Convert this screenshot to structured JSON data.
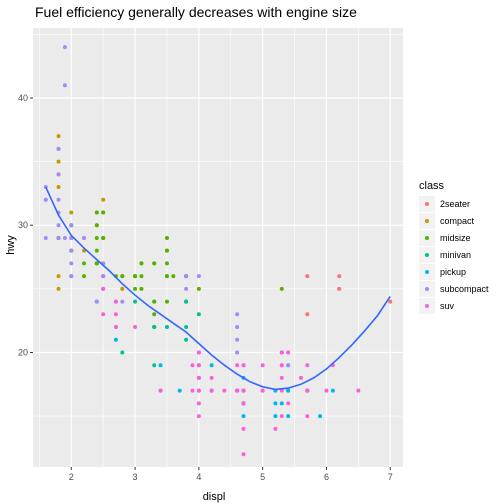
{
  "chart_data": {
    "type": "scatter",
    "title": "Fuel efficiency generally decreases with engine size",
    "xlabel": "displ",
    "ylabel": "hwy",
    "xlim": [
      1.4,
      7.2
    ],
    "ylim": [
      11,
      45.5
    ],
    "x_ticks": [
      2,
      3,
      4,
      5,
      6,
      7
    ],
    "x_tick_labels": [
      "2",
      "3",
      "4",
      "5",
      "6",
      "7"
    ],
    "y_ticks": [
      20,
      30,
      40
    ],
    "y_tick_labels": [
      "20",
      "30",
      "40"
    ],
    "grid": true,
    "panel_background": "#ebebeb",
    "grid_color": "#ffffff",
    "legend": {
      "title": "class",
      "placement": "right",
      "entries": [
        {
          "label": "2seater",
          "color": "#F8766D"
        },
        {
          "label": "compact",
          "color": "#C49A00"
        },
        {
          "label": "midsize",
          "color": "#53B400"
        },
        {
          "label": "minivan",
          "color": "#00C094"
        },
        {
          "label": "pickup",
          "color": "#00B6EB"
        },
        {
          "label": "subcompact",
          "color": "#A58AFF"
        },
        {
          "label": "suv",
          "color": "#FB61D7"
        }
      ]
    },
    "smooth_line": {
      "color": "#3366FF",
      "x": [
        1.6,
        1.8,
        2.0,
        2.2,
        2.4,
        2.6,
        2.8,
        3.0,
        3.2,
        3.4,
        3.6,
        3.8,
        4.0,
        4.2,
        4.4,
        4.6,
        4.8,
        5.0,
        5.2,
        5.4,
        5.6,
        5.8,
        6.0,
        6.2,
        6.4,
        6.6,
        6.8,
        7.0
      ],
      "y": [
        33.0,
        30.8,
        29.2,
        28.2,
        27.3,
        26.4,
        25.4,
        24.5,
        23.7,
        23.0,
        22.3,
        21.6,
        20.7,
        19.8,
        19.0,
        18.3,
        17.7,
        17.3,
        17.1,
        17.2,
        17.5,
        18.0,
        18.7,
        19.6,
        20.6,
        21.7,
        22.9,
        24.4
      ]
    },
    "series": [
      {
        "name": "2seater",
        "points": [
          [
            5.7,
            26
          ],
          [
            5.7,
            23
          ],
          [
            6.2,
            26
          ],
          [
            6.2,
            25
          ],
          [
            7.0,
            24
          ]
        ]
      },
      {
        "name": "compact",
        "points": [
          [
            1.8,
            29
          ],
          [
            1.8,
            29
          ],
          [
            2.0,
            31
          ],
          [
            2.0,
            30
          ],
          [
            2.8,
            26
          ],
          [
            2.8,
            26
          ],
          [
            3.1,
            27
          ],
          [
            1.8,
            26
          ],
          [
            1.8,
            25
          ],
          [
            2.0,
            28
          ],
          [
            2.0,
            29
          ],
          [
            2.8,
            25
          ],
          [
            2.4,
            27
          ],
          [
            2.4,
            30
          ],
          [
            1.8,
            37
          ],
          [
            1.8,
            35
          ],
          [
            2.0,
            29
          ],
          [
            2.0,
            26
          ],
          [
            2.5,
            29
          ],
          [
            2.5,
            26
          ],
          [
            2.2,
            29
          ],
          [
            2.2,
            28
          ],
          [
            2.4,
            27
          ],
          [
            2.4,
            31
          ],
          [
            3.0,
            26
          ],
          [
            3.3,
            27
          ],
          [
            1.8,
            36
          ],
          [
            1.8,
            34
          ],
          [
            1.8,
            33
          ],
          [
            2.0,
            29
          ],
          [
            2.5,
            32
          ],
          [
            2.5,
            31
          ]
        ]
      },
      {
        "name": "midsize",
        "points": [
          [
            2.4,
            30
          ],
          [
            2.4,
            27
          ],
          [
            3.1,
            26
          ],
          [
            3.5,
            29
          ],
          [
            3.6,
            26
          ],
          [
            2.4,
            29
          ],
          [
            3.0,
            26
          ],
          [
            3.3,
            24
          ],
          [
            3.3,
            24
          ],
          [
            3.3,
            22
          ],
          [
            3.3,
            23
          ],
          [
            3.5,
            26
          ],
          [
            3.8,
            26
          ],
          [
            3.8,
            26
          ],
          [
            4.0,
            25
          ],
          [
            2.5,
            29
          ],
          [
            2.5,
            27
          ],
          [
            2.5,
            31
          ],
          [
            3.5,
            26
          ],
          [
            3.5,
            27
          ],
          [
            3.1,
            27
          ],
          [
            3.8,
            26
          ],
          [
            3.8,
            24
          ],
          [
            5.3,
            25
          ],
          [
            1.8,
            29
          ],
          [
            2.0,
            30
          ],
          [
            2.0,
            28
          ],
          [
            2.8,
            26
          ],
          [
            3.1,
            25
          ],
          [
            2.4,
            27
          ],
          [
            2.4,
            31
          ],
          [
            3.3,
            27
          ],
          [
            3.0,
            26
          ],
          [
            3.0,
            25
          ],
          [
            3.5,
            28
          ],
          [
            2.2,
            27
          ],
          [
            2.2,
            26
          ],
          [
            2.4,
            28
          ],
          [
            3.0,
            26
          ],
          [
            3.5,
            28
          ],
          [
            2.5,
            29
          ],
          [
            2.7,
            26
          ],
          [
            3.5,
            24
          ]
        ]
      },
      {
        "name": "minivan",
        "points": [
          [
            2.4,
            24
          ],
          [
            3.0,
            24
          ],
          [
            3.3,
            22
          ],
          [
            3.3,
            19
          ],
          [
            3.3,
            22
          ],
          [
            3.8,
            22
          ],
          [
            3.8,
            21
          ],
          [
            4.0,
            23
          ],
          [
            3.8,
            24
          ],
          [
            2.8,
            20
          ],
          [
            3.5,
            22
          ],
          [
            3.8,
            24
          ]
        ]
      },
      {
        "name": "pickup",
        "points": [
          [
            2.7,
            22
          ],
          [
            3.4,
            19
          ],
          [
            4.0,
            18
          ],
          [
            3.7,
            17
          ],
          [
            4.7,
            16
          ],
          [
            4.7,
            17
          ],
          [
            4.7,
            15
          ],
          [
            5.2,
            17
          ],
          [
            5.7,
            17
          ],
          [
            5.9,
            15
          ],
          [
            4.7,
            16
          ],
          [
            5.2,
            15
          ],
          [
            5.4,
            17
          ],
          [
            4.2,
            17
          ],
          [
            4.6,
            17
          ],
          [
            4.6,
            17
          ],
          [
            5.4,
            15
          ],
          [
            5.3,
            16
          ],
          [
            5.4,
            17
          ],
          [
            4.0,
            19
          ],
          [
            4.7,
            16
          ],
          [
            5.7,
            17
          ],
          [
            6.1,
            17
          ],
          [
            4.7,
            16
          ],
          [
            5.2,
            16
          ],
          [
            5.4,
            19
          ],
          [
            2.7,
            24
          ],
          [
            4.0,
            20
          ],
          [
            3.4,
            17
          ],
          [
            2.7,
            21
          ],
          [
            4.2,
            19
          ],
          [
            4.7,
            18
          ],
          [
            5.3,
            20
          ]
        ]
      },
      {
        "name": "subcompact",
        "points": [
          [
            1.6,
            33
          ],
          [
            1.6,
            32
          ],
          [
            1.6,
            32
          ],
          [
            1.8,
            29
          ],
          [
            1.9,
            44
          ],
          [
            1.9,
            41
          ],
          [
            1.9,
            29
          ],
          [
            2.0,
            29
          ],
          [
            2.0,
            26
          ],
          [
            2.0,
            28
          ],
          [
            2.5,
            26
          ],
          [
            1.6,
            29
          ],
          [
            1.8,
            31
          ],
          [
            1.8,
            36
          ],
          [
            2.0,
            27
          ],
          [
            2.2,
            29
          ],
          [
            2.5,
            26
          ],
          [
            3.8,
            26
          ],
          [
            4.0,
            26
          ],
          [
            4.6,
            22
          ],
          [
            4.6,
            23
          ],
          [
            5.4,
            20
          ],
          [
            3.8,
            25
          ],
          [
            4.6,
            21
          ],
          [
            2.4,
            24
          ],
          [
            1.8,
            34
          ],
          [
            1.8,
            32
          ],
          [
            2.0,
            26
          ],
          [
            2.8,
            24
          ],
          [
            2.5,
            25
          ],
          [
            5.4,
            19
          ],
          [
            4.6,
            20
          ],
          [
            2.0,
            30
          ],
          [
            1.8,
            30
          ],
          [
            2.5,
            27
          ]
        ]
      },
      {
        "name": "suv",
        "points": [
          [
            5.3,
            20
          ],
          [
            5.3,
            15
          ],
          [
            5.3,
            20
          ],
          [
            5.7,
            17
          ],
          [
            6.0,
            17
          ],
          [
            5.7,
            15
          ],
          [
            6.5,
            17
          ],
          [
            5.3,
            19
          ],
          [
            4.7,
            19
          ],
          [
            4.7,
            17
          ],
          [
            4.7,
            12
          ],
          [
            5.7,
            17
          ],
          [
            6.1,
            19
          ],
          [
            4.0,
            17
          ],
          [
            4.0,
            17
          ],
          [
            4.6,
            19
          ],
          [
            5.0,
            17
          ],
          [
            4.2,
            18
          ],
          [
            4.2,
            17
          ],
          [
            4.6,
            17
          ],
          [
            4.2,
            17
          ],
          [
            4.7,
            17
          ],
          [
            4.0,
            15
          ],
          [
            3.4,
            17
          ],
          [
            4.0,
            19
          ],
          [
            5.4,
            16
          ],
          [
            4.7,
            14
          ],
          [
            4.0,
            18
          ],
          [
            4.4,
            17
          ],
          [
            5.4,
            20
          ],
          [
            5.6,
            18
          ],
          [
            5.2,
            14
          ],
          [
            4.0,
            20
          ],
          [
            4.6,
            17
          ],
          [
            5.0,
            17
          ],
          [
            2.7,
            24
          ],
          [
            2.7,
            23
          ],
          [
            2.5,
            23
          ],
          [
            2.5,
            25
          ],
          [
            2.7,
            22
          ],
          [
            3.0,
            22
          ],
          [
            3.9,
            17
          ],
          [
            4.0,
            20
          ],
          [
            4.7,
            19
          ],
          [
            5.7,
            19
          ],
          [
            5.3,
            18
          ],
          [
            4.7,
            16
          ],
          [
            5.3,
            17
          ],
          [
            5.3,
            19
          ],
          [
            4.0,
            16
          ],
          [
            3.9,
            19
          ],
          [
            5.0,
            19
          ]
        ]
      }
    ]
  }
}
